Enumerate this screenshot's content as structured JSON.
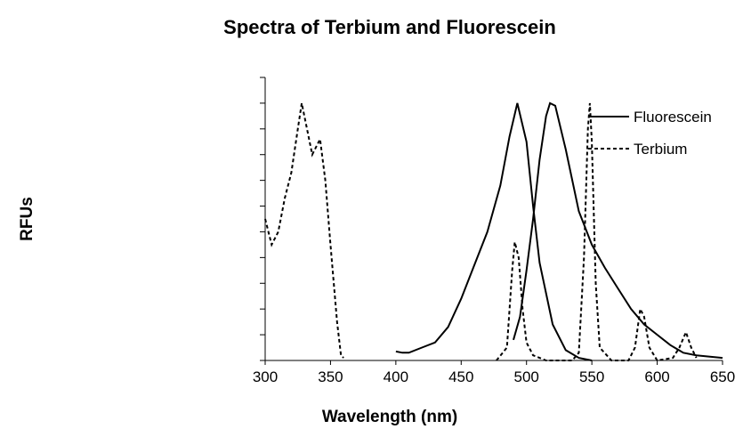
{
  "chart_data": {
    "type": "line",
    "title": "Spectra of Terbium and Fluorescein",
    "x_label": "Wavelength (nm)",
    "y_label": "RFUs",
    "xlim": [
      300,
      650
    ],
    "xticks": [
      300,
      350,
      400,
      450,
      500,
      550,
      600,
      650
    ],
    "ylim": [
      0,
      1.1
    ],
    "yticks": [
      0,
      0.1,
      0.2,
      0.3,
      0.4,
      0.5,
      0.6,
      0.7,
      0.8,
      0.9,
      1,
      1.1
    ],
    "legend": "top-right",
    "series": [
      {
        "name": "Fluorescein",
        "color": "#000000",
        "dash": "none",
        "x": [
          400,
          405,
          410,
          420,
          430,
          440,
          450,
          460,
          470,
          480,
          487,
          493,
          500,
          505,
          510,
          520,
          530,
          540,
          550,
          null,
          490,
          495,
          500,
          505,
          510,
          515,
          518,
          522,
          530,
          540,
          550,
          560,
          570,
          580,
          590,
          600,
          610,
          620,
          630,
          650
        ],
        "values": [
          0.035,
          0.03,
          0.03,
          0.05,
          0.07,
          0.13,
          0.24,
          0.37,
          0.5,
          0.68,
          0.87,
          1.0,
          0.85,
          0.6,
          0.38,
          0.14,
          0.04,
          0.01,
          0,
          null,
          0.08,
          0.17,
          0.35,
          0.55,
          0.78,
          0.95,
          1.0,
          0.99,
          0.82,
          0.58,
          0.45,
          0.36,
          0.28,
          0.2,
          0.14,
          0.1,
          0.06,
          0.03,
          0.02,
          0.01
        ]
      },
      {
        "name": "Terbium",
        "color": "#000000",
        "dash": "4 3",
        "x": [
          300,
          305,
          310,
          315,
          320,
          325,
          328,
          332,
          336,
          342,
          346,
          350,
          355,
          358,
          360,
          null,
          477,
          485,
          489,
          491,
          494,
          497,
          500,
          505,
          515,
          535,
          540,
          544,
          547,
          548.5,
          550,
          553,
          556,
          565,
          578,
          583,
          587,
          590,
          594,
          600,
          612,
          617,
          622,
          626,
          630
        ],
        "values": [
          0.55,
          0.45,
          0.5,
          0.63,
          0.73,
          0.9,
          1.0,
          0.9,
          0.8,
          0.86,
          0.7,
          0.45,
          0.15,
          0.02,
          0.01,
          null,
          0,
          0.05,
          0.35,
          0.46,
          0.4,
          0.2,
          0.07,
          0.02,
          0,
          0,
          0.03,
          0.4,
          0.9,
          1.0,
          0.85,
          0.3,
          0.05,
          0,
          0,
          0.05,
          0.2,
          0.17,
          0.05,
          0,
          0.01,
          0.05,
          0.11,
          0.05,
          0.01
        ]
      }
    ]
  }
}
